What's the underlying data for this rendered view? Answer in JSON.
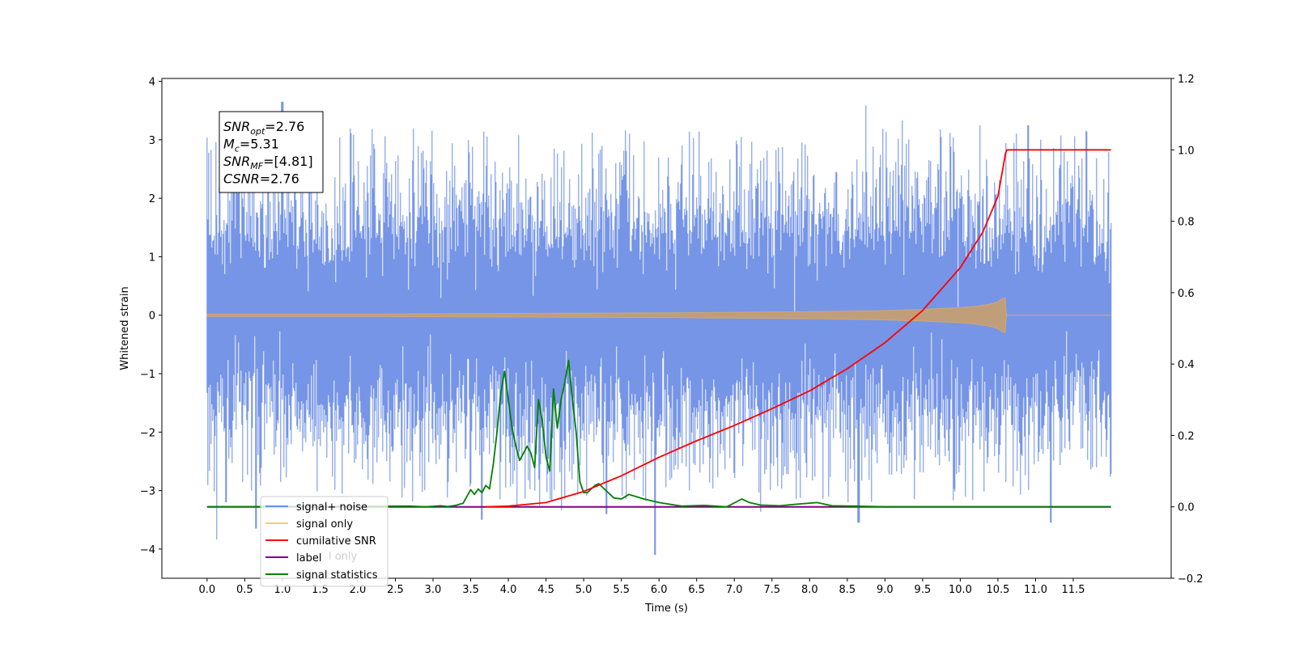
{
  "chart_data": {
    "type": "line",
    "xlabel": "Time (s)",
    "ylabel": "Whitened strain",
    "xlim": [
      -0.6,
      12.8
    ],
    "ylim": [
      -4.5,
      4.05
    ],
    "y2lim": [
      -0.2,
      1.2
    ],
    "xticks": [
      0.0,
      0.5,
      1.0,
      1.5,
      2.0,
      2.5,
      3.0,
      3.5,
      4.0,
      4.5,
      5.0,
      5.5,
      6.0,
      6.5,
      7.0,
      7.5,
      8.0,
      8.5,
      9.0,
      9.5,
      10.0,
      10.5,
      11.0,
      11.5
    ],
    "xtick_labels": [
      "0.0",
      "0.5",
      "1.0",
      "1.5",
      "2.0",
      "2.5",
      "3.0",
      "3.5",
      "4.0",
      "4.5",
      "5.0",
      "5.5",
      "6.0",
      "6.5",
      "7.0",
      "7.5",
      "8.0",
      "8.5",
      "9.0",
      "9.5",
      "10.0",
      "10.5",
      "11.0",
      "11.5"
    ],
    "yticks": [
      -4,
      -3,
      -2,
      -1,
      0,
      1,
      2,
      3,
      4
    ],
    "ytick_labels": [
      "−4",
      "−3",
      "−2",
      "−1",
      "0",
      "1",
      "2",
      "3",
      "4"
    ],
    "y2ticks": [
      -0.2,
      0.0,
      0.2,
      0.4,
      0.6,
      0.8,
      1.0,
      1.2
    ],
    "y2tick_labels": [
      "−0.2",
      "0.0",
      "0.2",
      "0.4",
      "0.6",
      "0.8",
      "1.0",
      "1.2"
    ],
    "annotation": {
      "lines": [
        {
          "base": "SNR",
          "sub": "opt",
          "rest": "=2.76"
        },
        {
          "base": "M",
          "sub": "c",
          "rest": "=5.31"
        },
        {
          "base": "SNR",
          "sub": "MF",
          "rest": "=[4.81]"
        },
        {
          "base": "CSNR",
          "sub": "",
          "rest": "=2.76"
        }
      ]
    },
    "legend": {
      "placement": "lower-left",
      "entries": [
        {
          "label": "signal+ noise",
          "color": "#6f8fe6"
        },
        {
          "label": "signal only",
          "color": "#ffc870"
        },
        {
          "label": "cumilative SNR",
          "color": "#ff0000"
        },
        {
          "label": "label",
          "color": "#800080"
        },
        {
          "label": "signal statistics",
          "color": "#008000"
        }
      ]
    },
    "hidden_label_fragment": "l only",
    "series": [
      {
        "name": "signal+ noise",
        "axis": "left",
        "color": "#6f8fe6",
        "t_start": 0.0,
        "t_end": 12.0,
        "noise_sigma": 1.0,
        "typical_max": 3.2,
        "typical_min": -3.2,
        "spikes": [
          [
            1.0,
            3.65
          ],
          [
            0.65,
            -3.65
          ],
          [
            5.95,
            -4.1
          ],
          [
            8.65,
            -3.55
          ],
          [
            3.65,
            -3.5
          ],
          [
            10.9,
            3.25
          ],
          [
            11.2,
            -3.55
          ],
          [
            0.25,
            -3.2
          ],
          [
            5.3,
            -3.4
          ]
        ]
      },
      {
        "name": "signal only",
        "axis": "left",
        "color": "#ffc870",
        "envelope": {
          "t": [
            0.0,
            2.0,
            4.0,
            6.0,
            7.0,
            8.0,
            8.5,
            9.0,
            9.5,
            10.0,
            10.2,
            10.4,
            10.5,
            10.55,
            10.6,
            10.61,
            12.0
          ],
          "amp": [
            0.02,
            0.02,
            0.03,
            0.04,
            0.05,
            0.06,
            0.07,
            0.08,
            0.1,
            0.13,
            0.15,
            0.19,
            0.23,
            0.28,
            0.3,
            0.0,
            0.0
          ]
        }
      },
      {
        "name": "cumilative SNR",
        "axis": "right",
        "color": "#ff0000",
        "x": [
          3.7,
          4.0,
          4.5,
          5.0,
          5.5,
          6.0,
          6.5,
          7.0,
          7.5,
          8.0,
          8.5,
          9.0,
          9.5,
          10.0,
          10.3,
          10.5,
          10.6,
          10.62,
          11.5,
          12.0
        ],
        "y": [
          0.0,
          0.002,
          0.012,
          0.043,
          0.087,
          0.139,
          0.185,
          0.228,
          0.275,
          0.325,
          0.387,
          0.46,
          0.55,
          0.67,
          0.77,
          0.87,
          0.99,
          1.0,
          1.0,
          1.0
        ]
      },
      {
        "name": "label",
        "axis": "right",
        "color": "#800080",
        "x": [
          0.0,
          12.0
        ],
        "y": [
          0.0,
          0.0
        ]
      },
      {
        "name": "signal statistics",
        "axis": "right",
        "color": "#008000",
        "x": [
          0.0,
          2.7,
          2.9,
          3.1,
          3.2,
          3.3,
          3.4,
          3.5,
          3.55,
          3.6,
          3.65,
          3.7,
          3.75,
          3.8,
          3.85,
          3.9,
          3.95,
          4.0,
          4.05,
          4.1,
          4.15,
          4.2,
          4.25,
          4.3,
          4.35,
          4.4,
          4.45,
          4.5,
          4.55,
          4.6,
          4.65,
          4.7,
          4.75,
          4.8,
          4.85,
          4.9,
          4.95,
          5.0,
          5.05,
          5.1,
          5.15,
          5.2,
          5.3,
          5.4,
          5.5,
          5.6,
          5.8,
          6.0,
          6.3,
          6.6,
          6.9,
          7.1,
          7.2,
          7.35,
          7.6,
          7.8,
          8.1,
          8.3,
          8.6,
          9.0,
          12.0
        ],
        "y": [
          0.0,
          0.002,
          0.0,
          0.003,
          0.001,
          0.004,
          0.01,
          0.048,
          0.035,
          0.05,
          0.04,
          0.06,
          0.05,
          0.12,
          0.21,
          0.32,
          0.38,
          0.3,
          0.22,
          0.17,
          0.13,
          0.15,
          0.17,
          0.15,
          0.11,
          0.3,
          0.24,
          0.14,
          0.1,
          0.33,
          0.22,
          0.3,
          0.35,
          0.41,
          0.3,
          0.21,
          0.07,
          0.04,
          0.04,
          0.05,
          0.06,
          0.065,
          0.045,
          0.025,
          0.022,
          0.035,
          0.022,
          0.012,
          0.002,
          0.004,
          0.0,
          0.022,
          0.012,
          0.005,
          0.003,
          0.007,
          0.012,
          0.003,
          0.002,
          0.0,
          0.0
        ]
      }
    ]
  }
}
